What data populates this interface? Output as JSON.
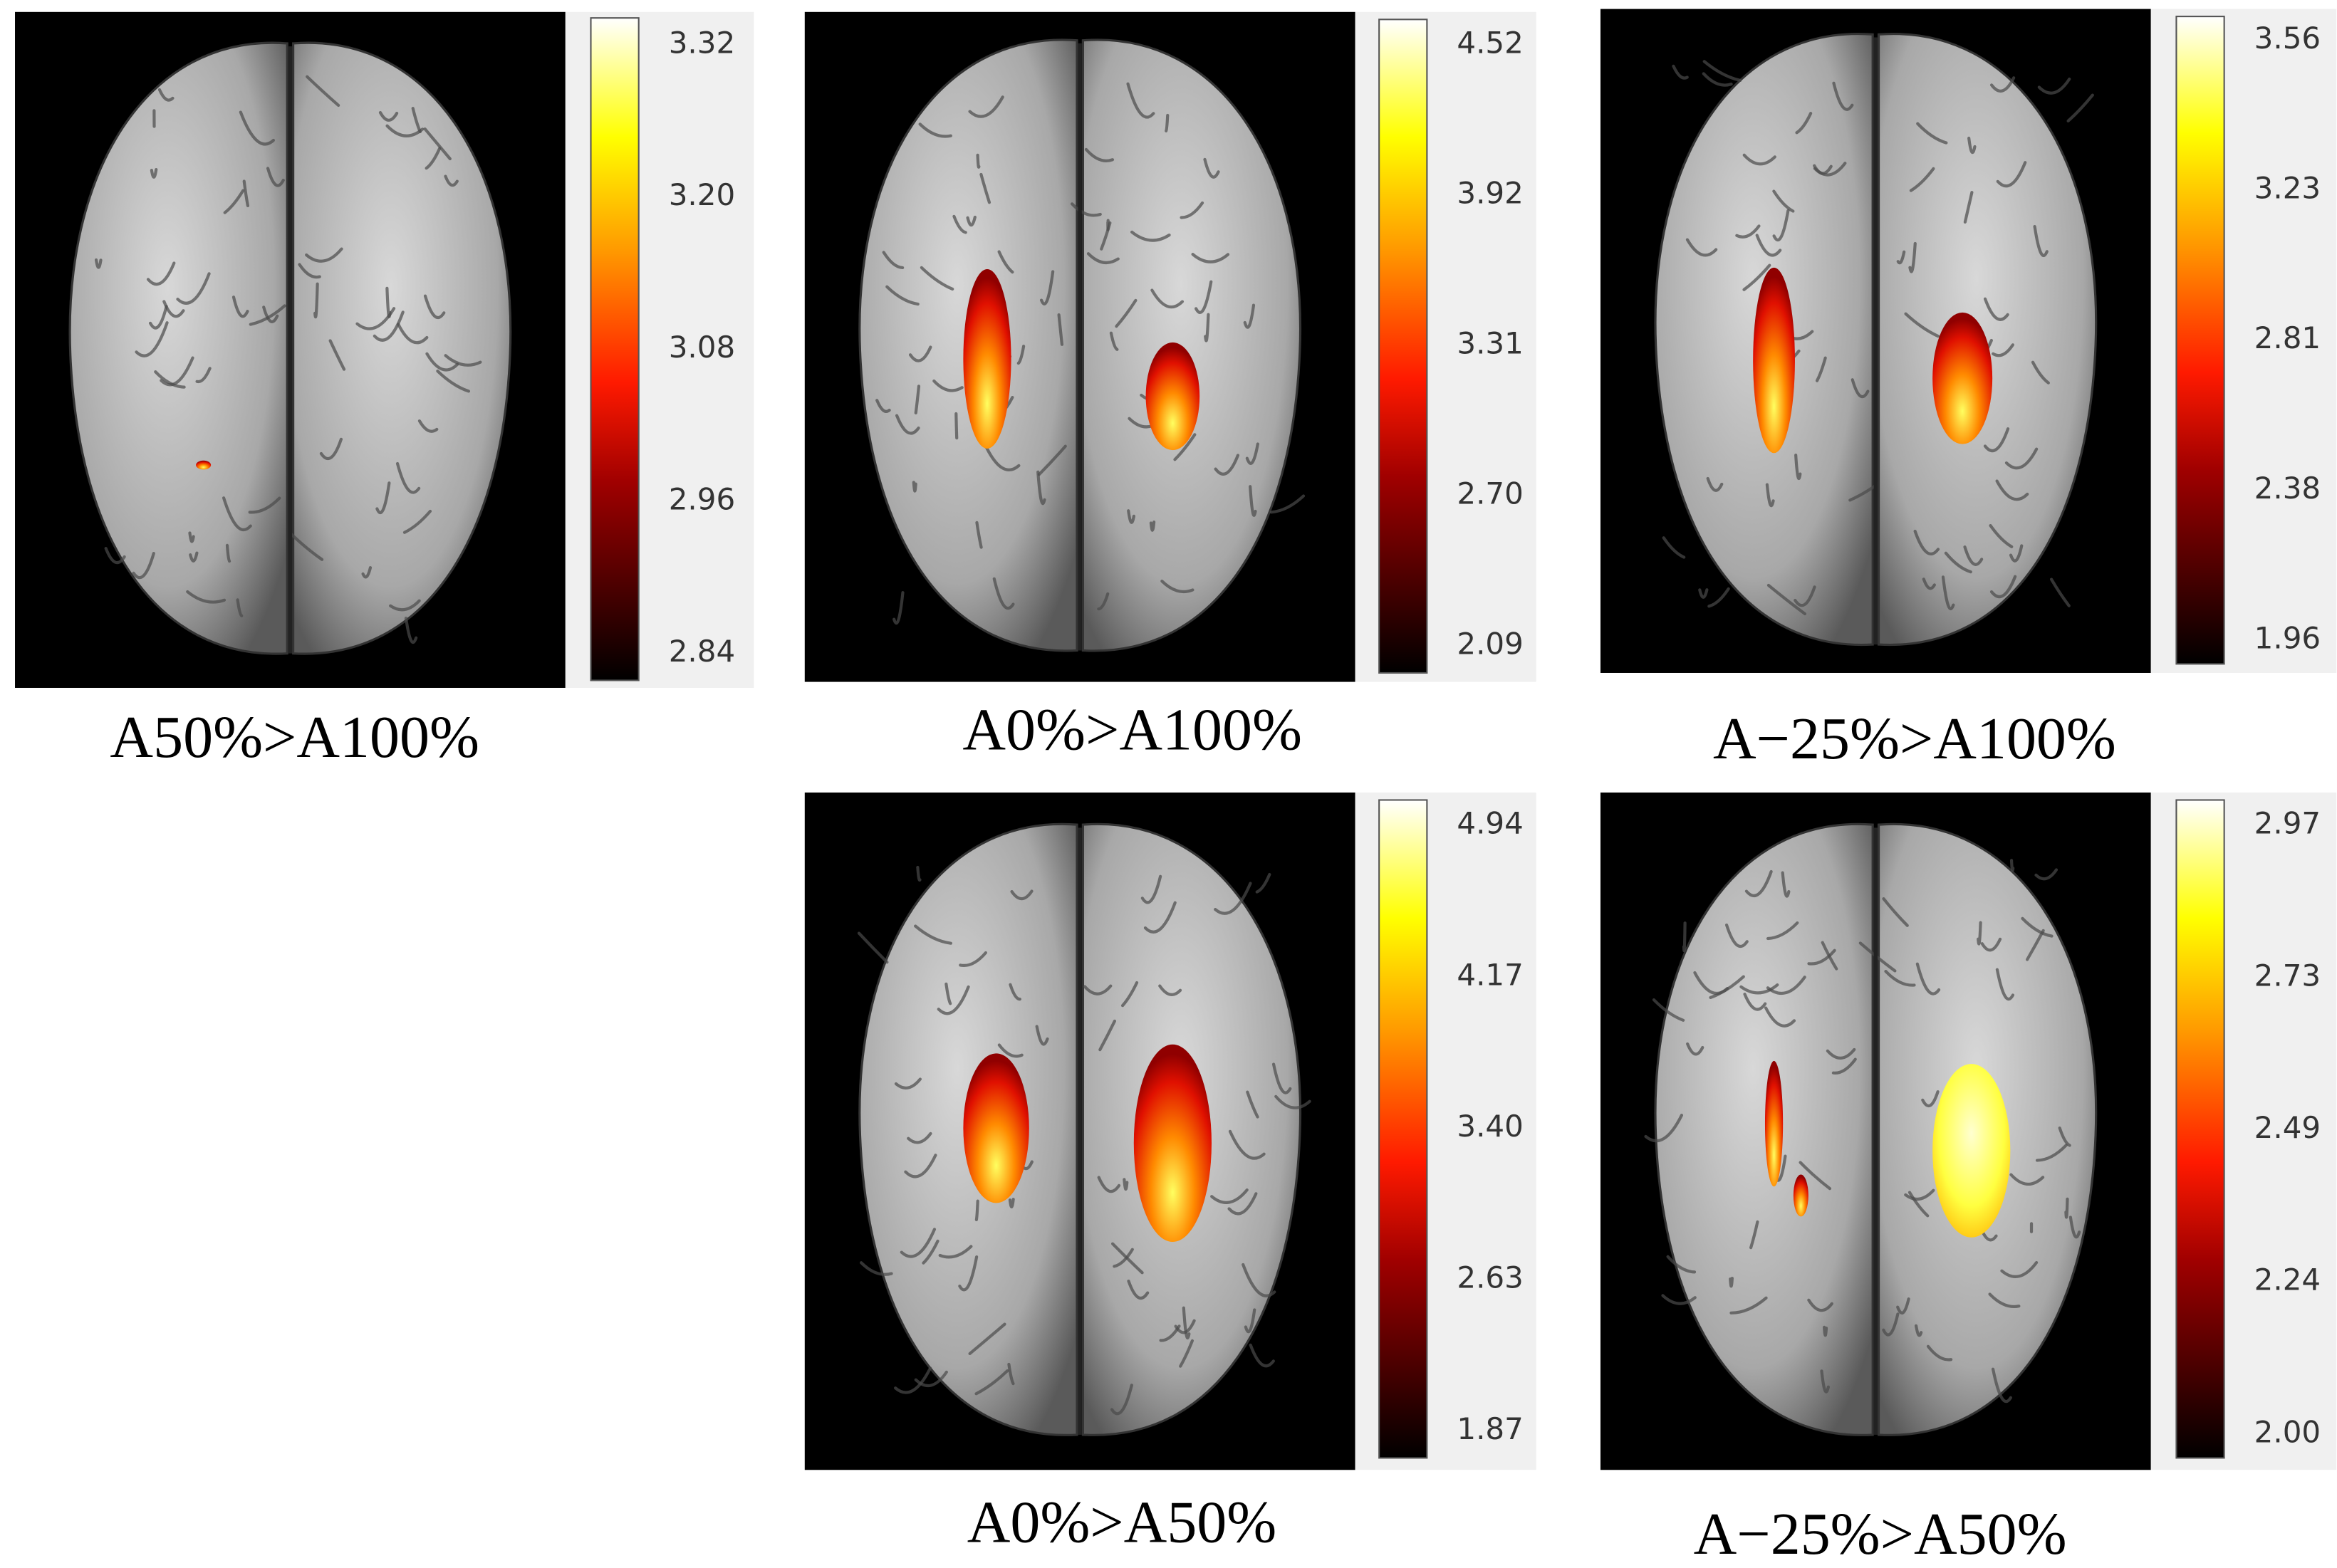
{
  "panels": [
    {
      "caption": "A50%>A100%",
      "colorbar_ticks": [
        "3.32",
        "3.20",
        "3.08",
        "2.96",
        "2.84"
      ]
    },
    {
      "caption": "A0%>A100%",
      "colorbar_ticks": [
        "4.52",
        "3.92",
        "3.31",
        "2.70",
        "2.09"
      ]
    },
    {
      "caption": "A−25%>A100%",
      "colorbar_ticks": [
        "3.56",
        "3.23",
        "2.81",
        "2.38",
        "1.96"
      ]
    },
    {
      "caption": "A0%>A50%",
      "colorbar_ticks": [
        "4.94",
        "4.17",
        "3.40",
        "2.63",
        "1.87"
      ]
    },
    {
      "caption": "A−25%>A50%",
      "colorbar_ticks": [
        "2.97",
        "2.73",
        "2.49",
        "2.24",
        "2.00"
      ]
    }
  ]
}
